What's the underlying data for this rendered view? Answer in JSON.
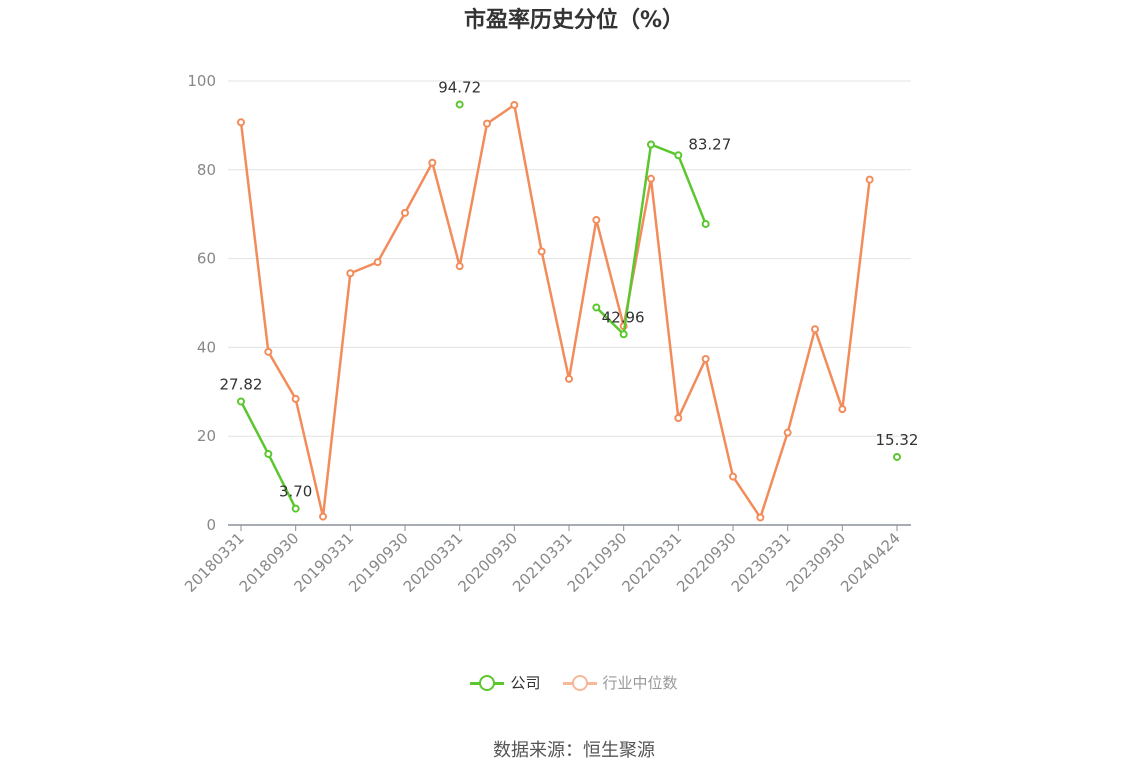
{
  "title": "市盈率历史分位（%）",
  "source": "数据来源：恒生聚源",
  "colors": {
    "company": "#5ac72e",
    "industry": "#f28c5b",
    "industry_legend": "#f7b89a",
    "grid": "#e3e3e3",
    "axis_text": "#888888"
  },
  "chart_data": {
    "type": "line",
    "title": "市盈率历史分位（%）",
    "ylim": [
      0,
      100
    ],
    "yticks": [
      0,
      20,
      40,
      60,
      80,
      100
    ],
    "x": [
      "20180331",
      "20180630",
      "20180930",
      "20181231",
      "20190331",
      "20190630",
      "20190930",
      "20191231",
      "20200331",
      "20200630",
      "20200930",
      "20201231",
      "20210331",
      "20210630",
      "20210930",
      "20211231",
      "20220331",
      "20220630",
      "20220930",
      "20221231",
      "20230331",
      "20230630",
      "20230930",
      "20231231",
      "20240424"
    ],
    "xtick_labels": [
      "20180331",
      "20180930",
      "20190331",
      "20190930",
      "20200331",
      "20200930",
      "20210331",
      "20210930",
      "20220331",
      "20220930",
      "20230331",
      "20230930",
      "20240424"
    ],
    "series": [
      {
        "name": "公司",
        "values": [
          27.82,
          16.0,
          3.7,
          null,
          null,
          null,
          null,
          null,
          94.72,
          null,
          null,
          null,
          null,
          49.0,
          42.96,
          85.7,
          83.27,
          67.8,
          null,
          null,
          null,
          null,
          null,
          null,
          15.32
        ]
      },
      {
        "name": "行业中位数",
        "values": [
          90.7,
          39.0,
          28.4,
          1.9,
          56.7,
          59.2,
          70.3,
          81.6,
          58.3,
          90.4,
          94.6,
          61.6,
          32.9,
          68.7,
          44.8,
          78.0,
          24.1,
          37.4,
          10.9,
          1.7,
          20.8,
          44.1,
          26.1,
          77.8,
          null
        ]
      }
    ],
    "annotations": [
      {
        "series": 0,
        "index": 0,
        "text": "27.82"
      },
      {
        "series": 0,
        "index": 2,
        "text": "3.70"
      },
      {
        "series": 0,
        "index": 8,
        "text": "94.72"
      },
      {
        "series": 0,
        "index": 14,
        "text": "42.96"
      },
      {
        "series": 0,
        "index": 16,
        "text": "83.27"
      },
      {
        "series": 0,
        "index": 24,
        "text": "15.32"
      }
    ],
    "legend": "bottom-center",
    "grid": true
  }
}
